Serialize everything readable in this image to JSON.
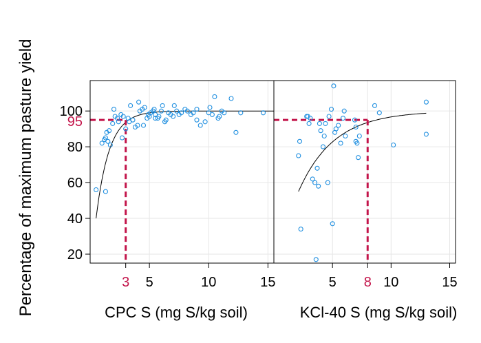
{
  "chart_data": {
    "type": "scatter",
    "y_axis": {
      "label": "Percentage of maximum pasture yield",
      "ticks": [
        20,
        40,
        60,
        80,
        100
      ],
      "ylim": [
        15,
        117
      ]
    },
    "critical_y": 95,
    "colors": {
      "points": "#1f8fe0",
      "critical": "#c3144a",
      "curve": "#000000",
      "grid": "#e6e6e6",
      "frame": "#000000"
    },
    "panels": [
      {
        "xlabel": "CPC S (mg S/kg soil)",
        "xlim": [
          0,
          15.5
        ],
        "ticks": [
          5,
          10,
          15
        ],
        "critical_x": 3,
        "curve": {
          "max": 100,
          "drop": 60,
          "rate": 0.9,
          "x0": 0.5,
          "x_start": 0.5,
          "x_end": 15.5
        },
        "points": [
          [
            0.5,
            56
          ],
          [
            1.3,
            55
          ],
          [
            1.0,
            82
          ],
          [
            1.2,
            84
          ],
          [
            1.3,
            85
          ],
          [
            1.5,
            83
          ],
          [
            1.4,
            88
          ],
          [
            1.6,
            89
          ],
          [
            1.7,
            81
          ],
          [
            1.9,
            93
          ],
          [
            2.0,
            101
          ],
          [
            2.1,
            97
          ],
          [
            2.3,
            96
          ],
          [
            2.4,
            94
          ],
          [
            2.6,
            98
          ],
          [
            2.8,
            97
          ],
          [
            3.0,
            90
          ],
          [
            3.2,
            96
          ],
          [
            3.4,
            103
          ],
          [
            3.6,
            95
          ],
          [
            3.8,
            91
          ],
          [
            4.0,
            92
          ],
          [
            4.1,
            105
          ],
          [
            4.2,
            100
          ],
          [
            4.4,
            101
          ],
          [
            4.5,
            92
          ],
          [
            4.6,
            102
          ],
          [
            4.8,
            96
          ],
          [
            4.9,
            98
          ],
          [
            5.0,
            97
          ],
          [
            5.1,
            99
          ],
          [
            5.3,
            100
          ],
          [
            5.4,
            101
          ],
          [
            5.5,
            98
          ],
          [
            5.7,
            96
          ],
          [
            5.8,
            97
          ],
          [
            6.0,
            100
          ],
          [
            6.1,
            103
          ],
          [
            6.3,
            94
          ],
          [
            6.4,
            95
          ],
          [
            6.6,
            99
          ],
          [
            6.8,
            98
          ],
          [
            7.0,
            97
          ],
          [
            7.1,
            103
          ],
          [
            7.3,
            100
          ],
          [
            7.5,
            98
          ],
          [
            7.7,
            99
          ],
          [
            8.0,
            101
          ],
          [
            8.2,
            100
          ],
          [
            8.5,
            98
          ],
          [
            8.7,
            99
          ],
          [
            9.0,
            101
          ],
          [
            9.3,
            92
          ],
          [
            9.7,
            94
          ],
          [
            10.0,
            99
          ],
          [
            10.1,
            102
          ],
          [
            10.3,
            98
          ],
          [
            10.5,
            108
          ],
          [
            10.8,
            96
          ],
          [
            10.9,
            97
          ],
          [
            11.1,
            100
          ],
          [
            11.3,
            99
          ],
          [
            11.9,
            107
          ],
          [
            12.3,
            88
          ],
          [
            12.7,
            99
          ],
          [
            14.6,
            99
          ],
          [
            2.7,
            85
          ],
          [
            3.3,
            94
          ],
          [
            5.5,
            96
          ],
          [
            9.0,
            95
          ]
        ]
      },
      {
        "xlabel": "KCl-40 S (mg S/kg soil)",
        "xlim": [
          0,
          15.5
        ],
        "ticks": [
          5,
          8,
          10,
          15
        ],
        "critical_x": 8,
        "curve": {
          "max": 100,
          "drop": 45,
          "rate": 0.33,
          "x0": 2.1,
          "x_start": 2.1,
          "x_end": 13
        },
        "points": [
          [
            2.1,
            75
          ],
          [
            2.2,
            83
          ],
          [
            2.3,
            34
          ],
          [
            2.8,
            97
          ],
          [
            3.0,
            93
          ],
          [
            3.1,
            96
          ],
          [
            3.3,
            62
          ],
          [
            3.5,
            60
          ],
          [
            3.7,
            68
          ],
          [
            3.8,
            58
          ],
          [
            3.6,
            17
          ],
          [
            3.9,
            93
          ],
          [
            4.0,
            89
          ],
          [
            4.2,
            80
          ],
          [
            4.3,
            86
          ],
          [
            4.6,
            60
          ],
          [
            4.7,
            97
          ],
          [
            4.9,
            101
          ],
          [
            5.0,
            37
          ],
          [
            5.1,
            114
          ],
          [
            5.3,
            90
          ],
          [
            5.5,
            92
          ],
          [
            5.7,
            82
          ],
          [
            5.9,
            96
          ],
          [
            6.0,
            100
          ],
          [
            6.1,
            86
          ],
          [
            6.9,
            95
          ],
          [
            7.0,
            91
          ],
          [
            7.1,
            82
          ],
          [
            7.2,
            74
          ],
          [
            7.3,
            86
          ],
          [
            8.6,
            103
          ],
          [
            9.0,
            99
          ],
          [
            10.2,
            81
          ],
          [
            13.0,
            105
          ],
          [
            13.0,
            87
          ],
          [
            2.9,
            97
          ],
          [
            5.2,
            88
          ],
          [
            7.0,
            83
          ],
          [
            4.4,
            93
          ]
        ]
      }
    ]
  }
}
